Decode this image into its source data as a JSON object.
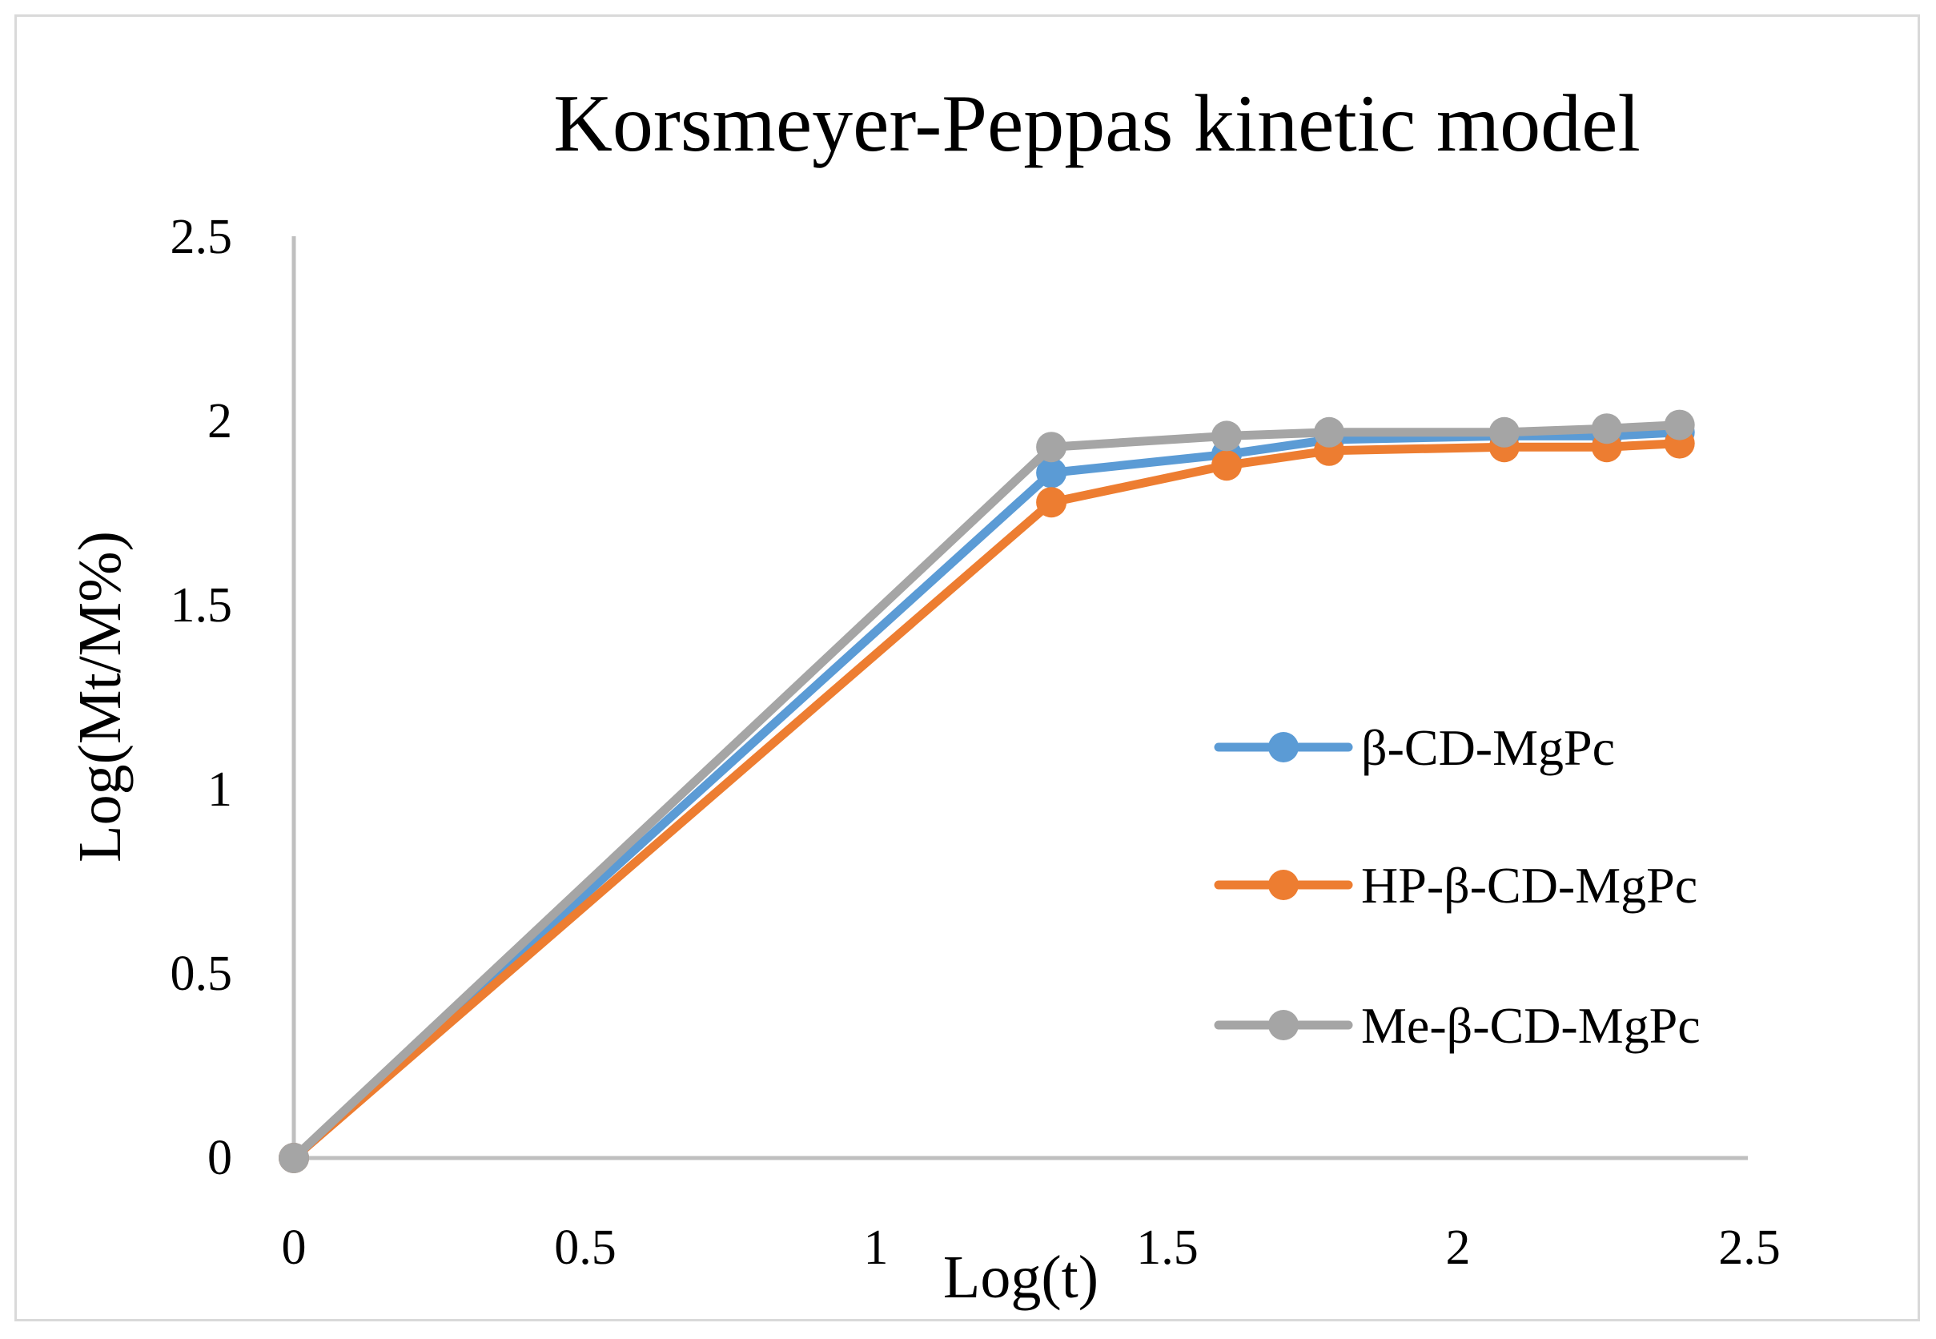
{
  "chart_data": {
    "type": "line",
    "title": "Korsmeyer-Peppas kinetic model",
    "xlabel": "Log(t)",
    "ylabel": "Log(Mt/M%)",
    "xlim": [
      0,
      2.5
    ],
    "ylim": [
      0,
      2.5
    ],
    "xticks": [
      "0",
      "0.5",
      "1",
      "1.5",
      "2",
      "2.5"
    ],
    "yticks": [
      "0",
      "0.5",
      "1",
      "1.5",
      "2",
      "2.5"
    ],
    "grid": false,
    "legend_position": "right",
    "x": [
      0,
      1.301,
      1.602,
      1.778,
      2.079,
      2.255,
      2.38
    ],
    "series": [
      {
        "name": "β-CD-MgPc",
        "color": "#5b9bd5",
        "values": [
          0,
          1.86,
          1.91,
          1.95,
          1.96,
          1.96,
          1.97
        ]
      },
      {
        "name": "HP-β-CD-MgPc",
        "color": "#ed7d31",
        "values": [
          0,
          1.78,
          1.88,
          1.92,
          1.93,
          1.93,
          1.94
        ]
      },
      {
        "name": "Me-β-CD-MgPc",
        "color": "#a5a5a5",
        "values": [
          0,
          1.93,
          1.96,
          1.97,
          1.97,
          1.98,
          1.99
        ]
      }
    ]
  }
}
